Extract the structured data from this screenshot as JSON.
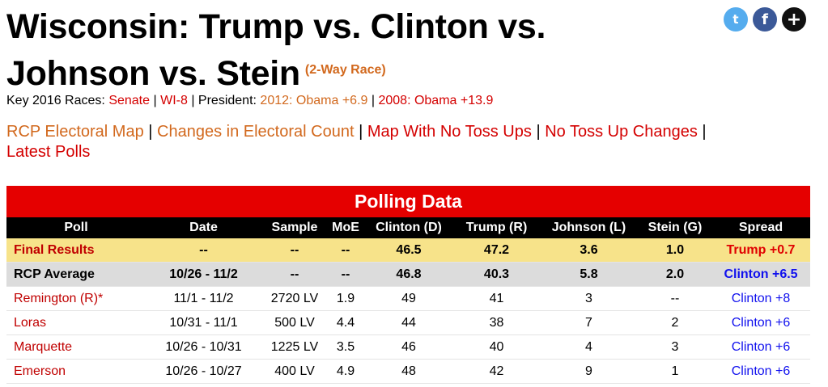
{
  "title": {
    "line1": "Wisconsin: Trump vs. Clinton vs.",
    "line2": "Johnson vs. Stein",
    "race_tag": "(2-Way Race)"
  },
  "social": {
    "twitter_glyph": "t",
    "facebook_glyph": "f",
    "more_glyph": "+"
  },
  "key_races": {
    "prefix": "Key 2016 Races:",
    "senate": "Senate",
    "sep1": "|",
    "wi8": "WI-8",
    "president_prefix": "| President:",
    "obama2012": "2012: Obama +6.9",
    "sep2": "|",
    "obama2008": "2008: Obama +13.9"
  },
  "nav_links": [
    {
      "label": "RCP Electoral Map",
      "color": "orange"
    },
    {
      "label": "Changes in Electoral Count",
      "color": "orange"
    },
    {
      "label": "Map With No Toss Ups",
      "color": "red"
    },
    {
      "label": "No Toss Up Changes",
      "color": "red"
    },
    {
      "label": "Latest Polls",
      "color": "red"
    }
  ],
  "nav_separator": "|",
  "polling": {
    "header": "Polling Data",
    "columns": [
      "Poll",
      "Date",
      "Sample",
      "MoE",
      "Clinton (D)",
      "Trump (R)",
      "Johnson (L)",
      "Stein (G)",
      "Spread"
    ],
    "final": [
      "Final Results",
      "--",
      "--",
      "--",
      "46.5",
      "47.2",
      "3.6",
      "1.0",
      "Trump +0.7"
    ],
    "rcp": [
      "RCP Average",
      "10/26 - 11/2",
      "--",
      "--",
      "46.8",
      "40.3",
      "5.8",
      "2.0",
      "Clinton +6.5"
    ],
    "rows": [
      [
        "Remington (R)*",
        "11/1 - 11/2",
        "2720 LV",
        "1.9",
        "49",
        "41",
        "3",
        "--",
        "Clinton +8"
      ],
      [
        "Loras",
        "10/31 - 11/1",
        "500 LV",
        "4.4",
        "44",
        "38",
        "7",
        "2",
        "Clinton +6"
      ],
      [
        "Marquette",
        "10/26 - 10/31",
        "1225 LV",
        "3.5",
        "46",
        "40",
        "4",
        "3",
        "Clinton +6"
      ],
      [
        "Emerson",
        "10/26 - 10/27",
        "400 LV",
        "4.9",
        "48",
        "42",
        "9",
        "1",
        "Clinton +6"
      ]
    ]
  },
  "colors": {
    "header_red": "#e50000",
    "final_yellow": "#f7e38a",
    "rcp_gray": "#dcdcdc",
    "link_red": "#d40000",
    "link_orange": "#d2691e",
    "spread_blue": "#1010ee"
  }
}
